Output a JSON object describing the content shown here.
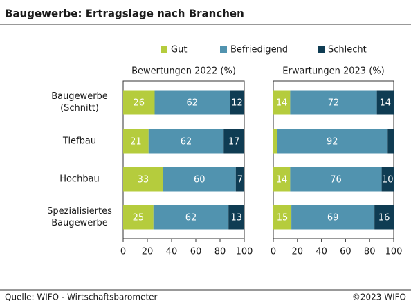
{
  "title": "Baugewerbe: Ertragslage nach Branchen",
  "source": "Quelle: WIFO - Wirtschaftsbarometer",
  "copyright": "©2023 WIFO",
  "chart_data": [
    {
      "type": "bar",
      "orientation": "horizontal",
      "stacked": true,
      "title": "Bewertungen 2022 (%)",
      "categories": [
        "Baugewerbe\n(Schnitt)",
        "Tiefbau",
        "Hochbau",
        "Spezialisiertes\nBaugewerbe"
      ],
      "series": [
        {
          "name": "Gut",
          "color": "#b5cc3d",
          "values": [
            26,
            21,
            33,
            25
          ]
        },
        {
          "name": "Befriedigend",
          "color": "#5193af",
          "values": [
            62,
            62,
            60,
            62
          ]
        },
        {
          "name": "Schlecht",
          "color": "#0f3c53",
          "values": [
            12,
            17,
            7,
            13
          ]
        }
      ],
      "xlim": [
        0,
        100
      ],
      "xticks": [
        0,
        20,
        40,
        60,
        80,
        100
      ]
    },
    {
      "type": "bar",
      "orientation": "horizontal",
      "stacked": true,
      "title": "Erwartungen 2023 (%)",
      "series": [
        {
          "color": "#b5cc3d",
          "values": [
            14,
            3,
            14,
            15
          ]
        },
        {
          "color": "#5193af",
          "values": [
            72,
            92,
            76,
            69
          ]
        },
        {
          "color": "#0f3c53",
          "values": [
            14,
            5,
            10,
            16
          ]
        }
      ],
      "xlim": [
        0,
        100
      ],
      "xticks": [
        0,
        20,
        40,
        60,
        80,
        100
      ]
    }
  ]
}
